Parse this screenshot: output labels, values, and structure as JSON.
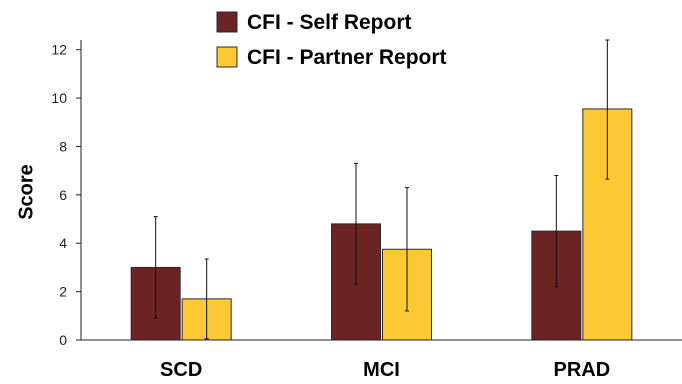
{
  "chart_data": {
    "type": "bar",
    "title": "",
    "xlabel": "",
    "ylabel": "Score",
    "ylim": [
      0,
      12.4
    ],
    "yticks": [
      0,
      2,
      4,
      6,
      8,
      10,
      12
    ],
    "categories": [
      "SCD",
      "MCI",
      "PRAD"
    ],
    "series": [
      {
        "name": "CFI - Self Report",
        "color": "#6b2323",
        "values": [
          3.0,
          4.8,
          4.5
        ],
        "error_low": [
          0.9,
          2.3,
          2.2
        ],
        "error_high": [
          5.1,
          7.3,
          6.8
        ]
      },
      {
        "name": "CFI - Partner Report",
        "color": "#fcc934",
        "values": [
          1.7,
          3.75,
          9.55
        ],
        "error_low": [
          0.05,
          1.2,
          6.65
        ],
        "error_high": [
          3.35,
          6.3,
          12.4
        ]
      }
    ],
    "legend_position": "top",
    "grid": false
  }
}
